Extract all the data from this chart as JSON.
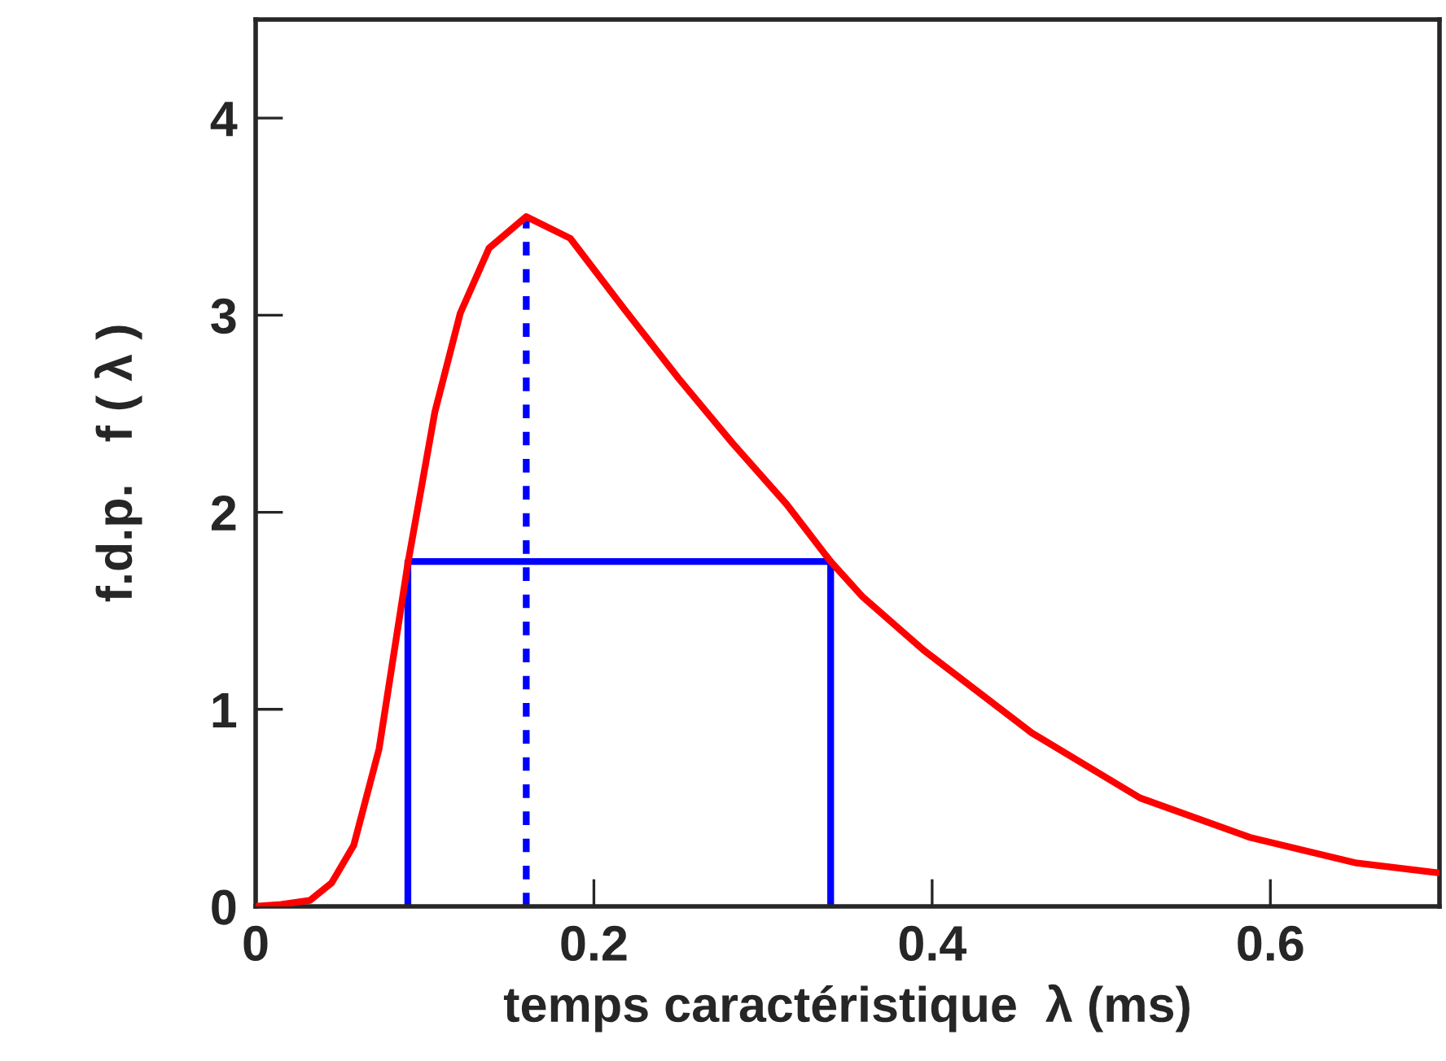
{
  "chart_data": {
    "type": "line",
    "xlabel": "temps caractéristique  λ (ms)",
    "ylabel": "f.d.p.   f ( λ )",
    "xlim": [
      0,
      0.7
    ],
    "ylim": [
      0,
      4.5
    ],
    "xticks": [
      0,
      0.2,
      0.4,
      0.6
    ],
    "yticks": [
      0,
      1,
      2,
      3,
      4
    ],
    "grid": false,
    "legend": false,
    "marker": "none",
    "series": [
      {
        "color": "#ff0000",
        "line_style": "solid",
        "x": [
          0,
          0.015,
          0.032,
          0.045,
          0.058,
          0.073,
          0.09,
          0.106,
          0.121,
          0.138,
          0.16,
          0.186,
          0.218,
          0.25,
          0.282,
          0.314,
          0.34,
          0.359,
          0.395,
          0.459,
          0.523,
          0.588,
          0.651,
          0.7
        ],
        "values": [
          0,
          0.01,
          0.03,
          0.12,
          0.31,
          0.8,
          1.74,
          2.51,
          3.01,
          3.34,
          3.5,
          3.39,
          3.03,
          2.68,
          2.35,
          2.04,
          1.75,
          1.57,
          1.3,
          0.88,
          0.55,
          0.35,
          0.22,
          0.17
        ]
      },
      {
        "color": "#0000ff",
        "line_style": "solid",
        "x": [
          0.09,
          0.09,
          0.34,
          0.34
        ],
        "values": [
          0,
          1.75,
          1.75,
          0
        ]
      },
      {
        "color": "#0000ff",
        "line_style": "dotted",
        "x": [
          0.16,
          0.16
        ],
        "values": [
          0,
          3.5
        ]
      }
    ]
  }
}
